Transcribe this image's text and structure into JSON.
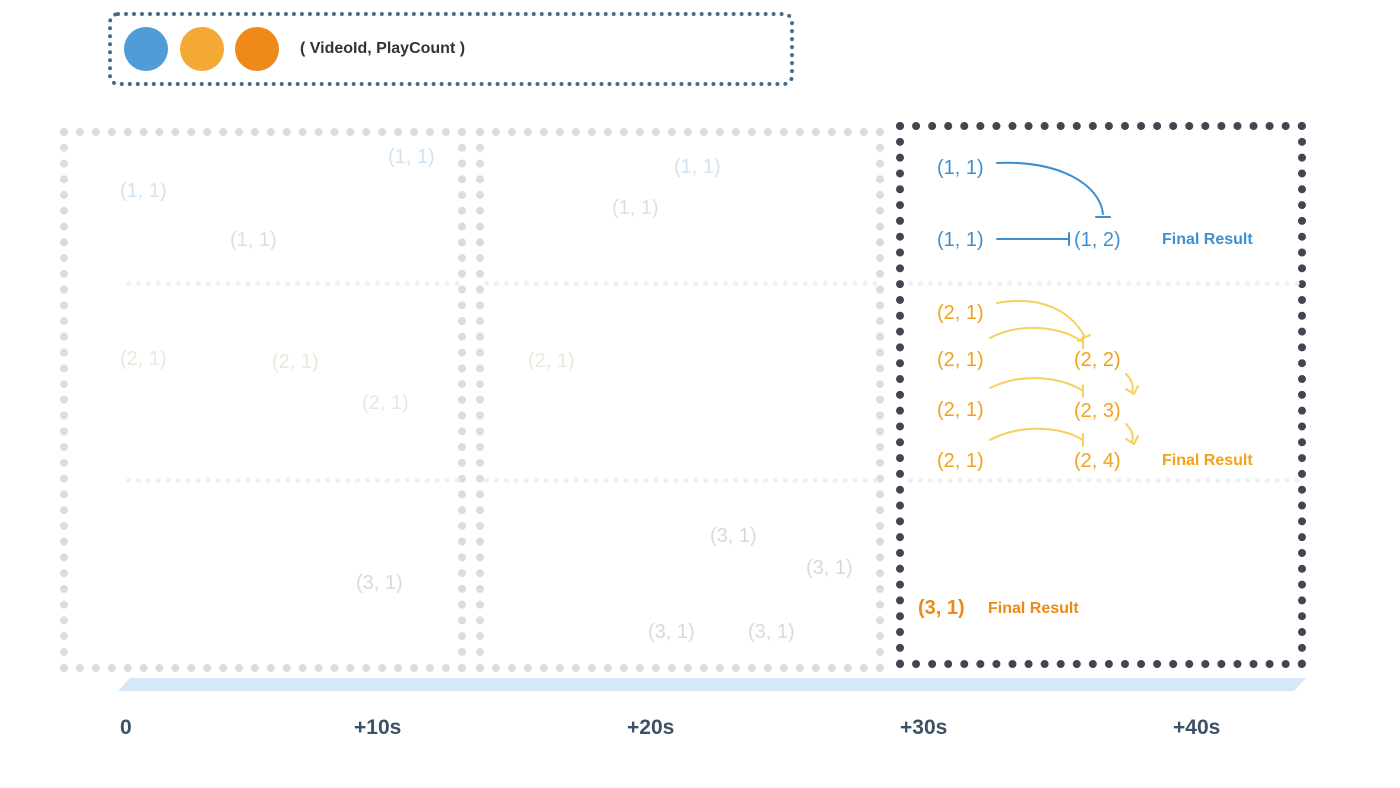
{
  "legend": {
    "label": "( VideoId, PlayCount )",
    "colors": [
      "#4f9cd6",
      "#f3a934",
      "#ef8a1a"
    ]
  },
  "window1": {
    "items": [
      "(1, 1)",
      "(1, 1)",
      "(1, 1)",
      "(2, 1)",
      "(2, 1)",
      "(2, 1)",
      "(3, 1)"
    ]
  },
  "window2": {
    "items": [
      "(1, 1)",
      "(1, 1)",
      "(2, 1)",
      "(3, 1)",
      "(3, 1)",
      "(3, 1)",
      "(3, 1)"
    ]
  },
  "window3": {
    "blue_inputs": [
      "(1, 1)",
      "(1, 1)"
    ],
    "blue_result": "(1, 2)",
    "blue_final": "Final Result",
    "orange_inputs": [
      "(2, 1)",
      "(2, 1)",
      "(2, 1)",
      "(2, 1)"
    ],
    "orange_results": [
      "(2, 2)",
      "(2, 3)",
      "(2, 4)"
    ],
    "orange_final": "Final Result",
    "dark_item": "(3, 1)",
    "dark_final": "Final Result"
  },
  "timeline": {
    "ticks": [
      "0",
      "+10s",
      "+20s",
      "+30s",
      "+40s"
    ]
  }
}
